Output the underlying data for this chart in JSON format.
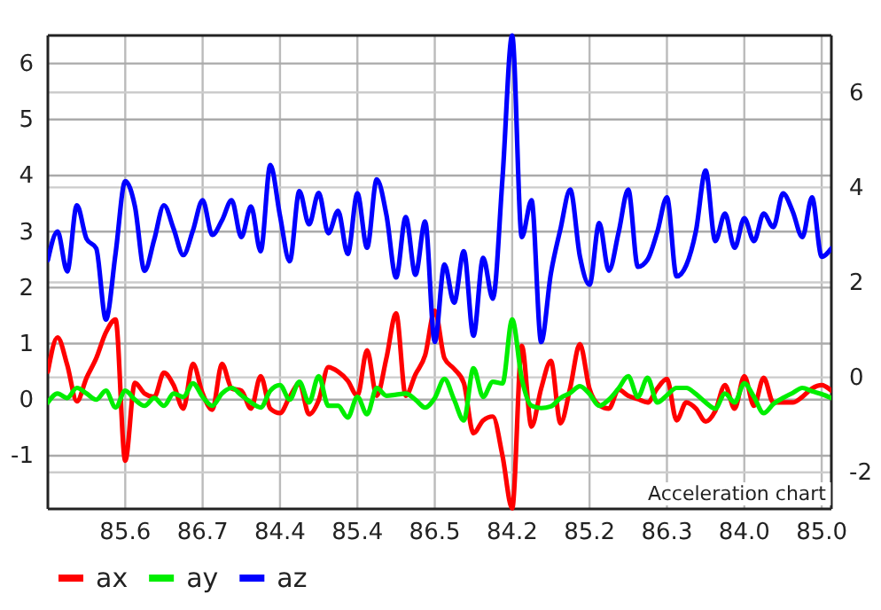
{
  "chart_data": {
    "type": "line",
    "categories": [
      null,
      null,
      null,
      null,
      null,
      null,
      null,
      null,
      "85.6",
      null,
      null,
      null,
      null,
      null,
      null,
      null,
      "86.7",
      null,
      null,
      null,
      null,
      null,
      null,
      null,
      "84.4",
      null,
      null,
      null,
      null,
      null,
      null,
      null,
      "85.4",
      null,
      null,
      null,
      null,
      null,
      null,
      null,
      "86.5",
      null,
      null,
      null,
      null,
      null,
      null,
      null,
      "84.2",
      null,
      null,
      null,
      null,
      null,
      null,
      null,
      "85.2",
      null,
      null,
      null,
      null,
      null,
      null,
      null,
      "86.3",
      null,
      null,
      null,
      null,
      null,
      null,
      null,
      "84.0",
      null,
      null,
      null,
      null,
      null,
      null,
      null,
      "85.0",
      null
    ],
    "ylim": [
      -1.95,
      6.5
    ],
    "yticks": [
      -1,
      0,
      1,
      2,
      3,
      4,
      5,
      6
    ],
    "y2lim": [
      -2.77,
      7.2
    ],
    "y2ticks": [
      -2,
      0,
      2,
      4,
      6
    ],
    "grid": true,
    "legend": "bottom left",
    "marker": "none",
    "line_style": "solid",
    "annotations": [
      "Acceleration chart"
    ],
    "series": [
      {
        "name": "ax",
        "color": "#ff0000",
        "values": [
          0.5,
          1.11,
          0.62,
          -0.03,
          0.39,
          0.74,
          1.2,
          1.43,
          -1.09,
          0.3,
          0.11,
          0.05,
          0.48,
          0.26,
          -0.16,
          0.64,
          0.11,
          -0.18,
          0.64,
          0.2,
          0.16,
          -0.16,
          0.42,
          -0.16,
          -0.24,
          0.05,
          0.29,
          -0.26,
          -0.01,
          0.58,
          0.5,
          0.34,
          0.07,
          0.88,
          0.07,
          0.74,
          1.54,
          0.07,
          0.45,
          0.79,
          1.59,
          0.74,
          0.55,
          0.3,
          -0.6,
          -0.37,
          -0.3,
          -1.0,
          -1.94,
          0.96,
          -0.48,
          0.2,
          0.69,
          -0.42,
          0.21,
          0.99,
          0.19,
          -0.1,
          -0.16,
          0.18,
          0.07,
          0.01,
          -0.05,
          0.2,
          0.37,
          -0.37,
          -0.05,
          -0.16,
          -0.39,
          -0.2,
          0.26,
          -0.16,
          0.42,
          -0.11,
          0.39,
          -0.05,
          -0.05,
          -0.05,
          0.05,
          0.2,
          0.26,
          0.16
        ]
      },
      {
        "name": "ay",
        "color": "#00ee00",
        "values": [
          -0.05,
          0.11,
          0.03,
          0.21,
          0.11,
          0,
          0.16,
          -0.14,
          0.16,
          0,
          -0.11,
          0.03,
          -0.11,
          0.11,
          0.05,
          0.29,
          0.05,
          -0.11,
          0.11,
          0.21,
          0.08,
          -0.05,
          -0.14,
          0.16,
          0.26,
          0,
          0.32,
          -0.05,
          0.42,
          -0.11,
          -0.11,
          -0.32,
          0.05,
          -0.26,
          0.21,
          0.07,
          0.09,
          0.11,
          0,
          -0.14,
          0.03,
          0.37,
          0,
          -0.37,
          0.56,
          0.05,
          0.32,
          0.29,
          1.43,
          0.37,
          -0.11,
          -0.15,
          -0.12,
          0.03,
          0.12,
          0.24,
          0.1,
          -0.11,
          0,
          0.2,
          0.42,
          0.05,
          0.39,
          -0.05,
          0.08,
          0.21,
          0.21,
          0.1,
          -0.05,
          -0.16,
          0.11,
          -0.05,
          0.29,
          0.05,
          -0.24,
          -0.08,
          0.03,
          0.12,
          0.21,
          0.15,
          0.1,
          0.03
        ]
      },
      {
        "name": "az",
        "color": "#0000ff",
        "values": [
          2.49,
          3.0,
          2.29,
          3.47,
          2.87,
          2.7,
          1.43,
          2.61,
          3.9,
          3.45,
          2.3,
          2.86,
          3.47,
          3.05,
          2.58,
          3.02,
          3.56,
          2.94,
          3.2,
          3.56,
          2.9,
          3.45,
          2.65,
          4.19,
          3.28,
          2.47,
          3.72,
          3.13,
          3.69,
          2.97,
          3.37,
          2.6,
          3.68,
          2.71,
          3.93,
          3.3,
          2.18,
          3.26,
          2.23,
          3.18,
          1.03,
          2.41,
          1.73,
          2.65,
          1.14,
          2.53,
          1.8,
          3.95,
          6.5,
          2.9,
          3.56,
          1.03,
          2.25,
          3.05,
          3.75,
          2.56,
          2.05,
          3.15,
          2.3,
          2.98,
          3.75,
          2.37,
          2.5,
          2.99,
          3.61,
          2.2,
          2.4,
          3.01,
          4.09,
          2.83,
          3.32,
          2.71,
          3.24,
          2.83,
          3.32,
          3.08,
          3.68,
          3.36,
          2.9,
          3.61,
          2.55,
          2.7
        ]
      }
    ]
  }
}
